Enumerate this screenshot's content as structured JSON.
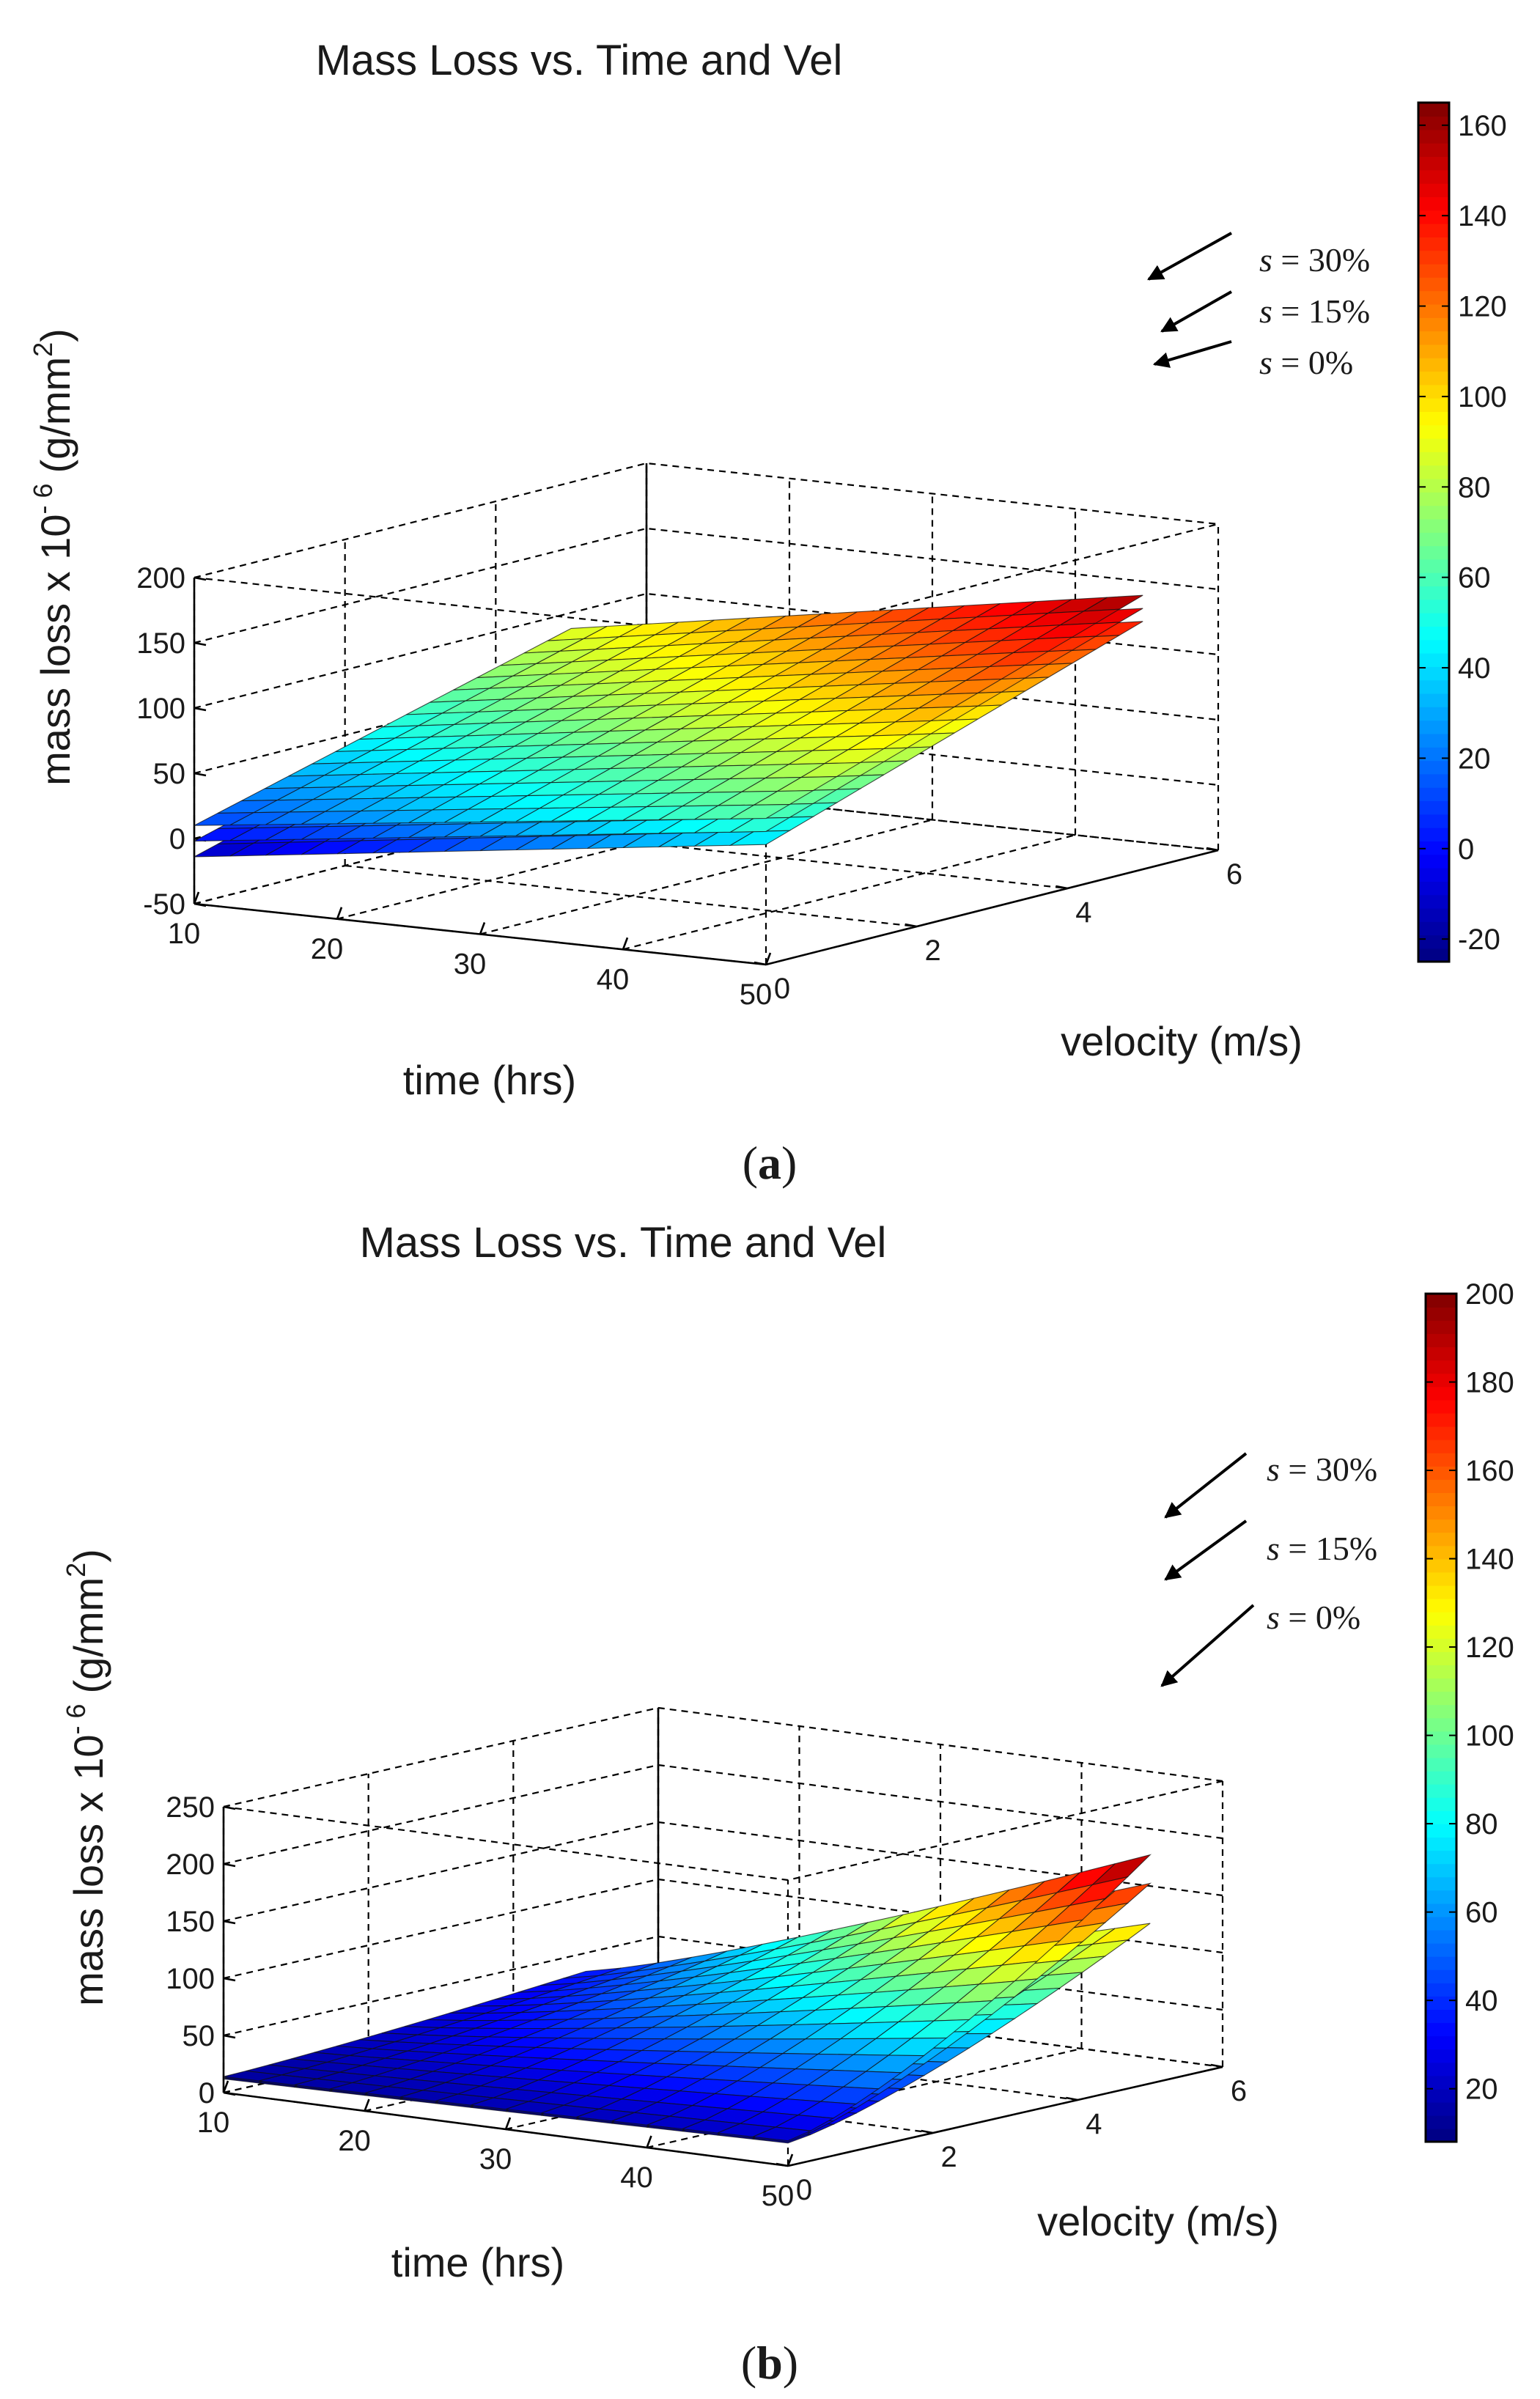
{
  "chart_data": [
    {
      "panel": "a",
      "type": "surface3d",
      "panel_label": "a",
      "title": "Mass Loss vs. Time and Vel",
      "xlabel": "time (hrs)",
      "ylabel": "velocity (m/s)",
      "zlabel": "mass loss x 10",
      "zlabel_exp": "- 6",
      "zlabel_unit": "(g/mm",
      "zlabel_unit_exp": "2",
      "zlabel_close": ")",
      "xlim": [
        10,
        50
      ],
      "ylim": [
        0,
        6
      ],
      "zlim": [
        -50,
        200
      ],
      "xticks": [
        "10",
        "20",
        "30",
        "40",
        "50"
      ],
      "yticks": [
        "0",
        "2",
        "4",
        "6"
      ],
      "zticks": [
        "-50",
        "0",
        "50",
        "100",
        "150",
        "200"
      ],
      "colorbar": {
        "range": [
          -25,
          165
        ],
        "ticks": [
          "-20",
          "0",
          "20",
          "40",
          "60",
          "80",
          "100",
          "120",
          "140",
          "160"
        ]
      },
      "series": [
        {
          "name": "s = 0%",
          "corners": {
            "t10_v0": -14,
            "t10_v5": 70,
            "t50_v0": 42,
            "t50_v5": 140
          }
        },
        {
          "name": "s = 15%",
          "corners": {
            "t10_v0": -2,
            "t10_v5": 78,
            "t50_v0": 52,
            "t50_v5": 150
          }
        },
        {
          "name": "s = 30%",
          "corners": {
            "t10_v0": 10,
            "t10_v5": 88,
            "t50_v0": 62,
            "t50_v5": 160
          }
        }
      ],
      "annotations": [
        {
          "prefix": "s",
          "text": " = 30%",
          "target": "s = 30%"
        },
        {
          "prefix": "s",
          "text": " = 15%",
          "target": "s = 15%"
        },
        {
          "prefix": "s",
          "text": " = 0%",
          "target": "s = 0%"
        }
      ]
    },
    {
      "panel": "b",
      "type": "surface3d",
      "panel_label": "b",
      "title": "Mass Loss vs. Time and Vel",
      "xlabel": "time (hrs)",
      "ylabel": "velocity (m/s)",
      "zlabel": "mass loss x 10",
      "zlabel_exp": "- 6",
      "zlabel_unit": "(g/mm",
      "zlabel_unit_exp": "2",
      "zlabel_close": ")",
      "xlim": [
        10,
        50
      ],
      "ylim": [
        0,
        6
      ],
      "zlim": [
        0,
        250
      ],
      "xticks": [
        "10",
        "20",
        "30",
        "40",
        "50"
      ],
      "yticks": [
        "0",
        "2",
        "4",
        "6"
      ],
      "zticks": [
        "0",
        "50",
        "100",
        "150",
        "200",
        "250"
      ],
      "colorbar": {
        "range": [
          8,
          200
        ],
        "ticks": [
          "20",
          "40",
          "60",
          "80",
          "100",
          "120",
          "140",
          "160",
          "180",
          "200"
        ]
      },
      "series": [
        {
          "name": "s = 0%",
          "corners": {
            "t10_v0": 12,
            "t10_v5": 22,
            "t50_v0": 20,
            "t50_v5": 140
          }
        },
        {
          "name": "s = 15%",
          "corners": {
            "t10_v0": 13,
            "t10_v5": 28,
            "t50_v0": 21,
            "t50_v5": 175
          }
        },
        {
          "name": "s = 30%",
          "corners": {
            "t10_v0": 14,
            "t10_v5": 34,
            "t50_v0": 22,
            "t50_v5": 200
          }
        }
      ],
      "annotations": [
        {
          "prefix": "s",
          "text": " = 30%",
          "target": "s = 30%"
        },
        {
          "prefix": "s",
          "text": " = 15%",
          "target": "s = 15%"
        },
        {
          "prefix": "s",
          "text": " = 0%",
          "target": "s = 0%"
        }
      ]
    }
  ]
}
